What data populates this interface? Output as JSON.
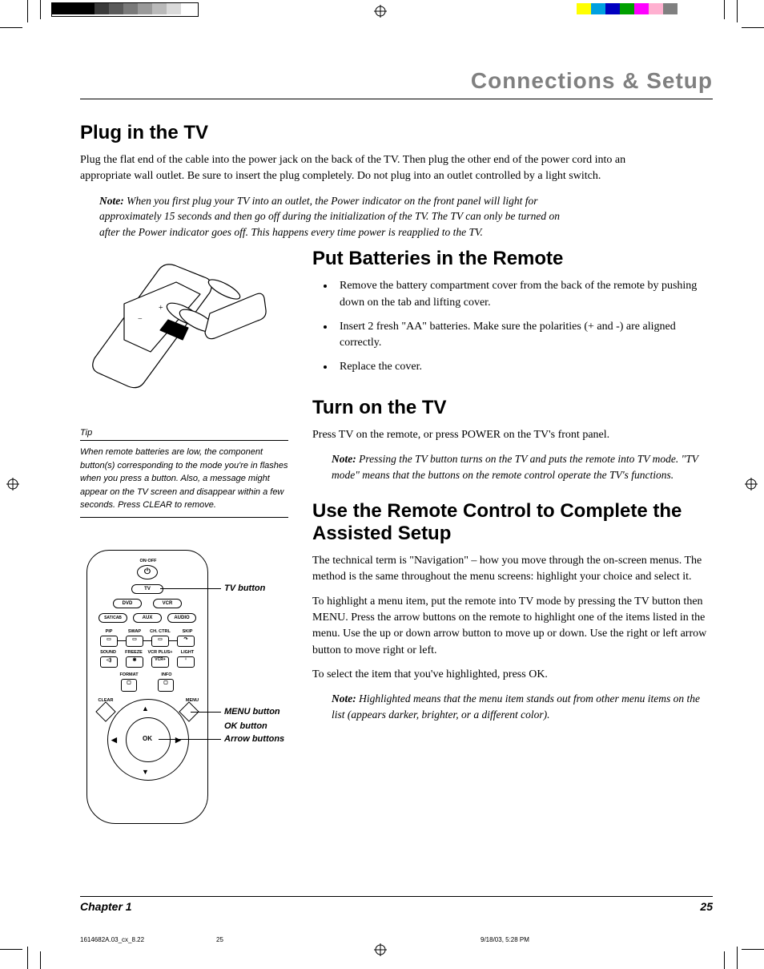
{
  "print_marks": {
    "left_strip_colors": [
      "#000000",
      "#000000",
      "#000000",
      "#3a3a3a",
      "#5a5a5a",
      "#7a7a7a",
      "#9a9a9a",
      "#bababa",
      "#dadada",
      "#ffffff"
    ],
    "right_strip_colors": [
      "#ffff00",
      "#00a0e0",
      "#0000c0",
      "#00a000",
      "#ff00ff",
      "#ffb0d0",
      "#808080",
      "#ffffff"
    ]
  },
  "header": {
    "title": "Connections & Setup"
  },
  "section_plug": {
    "heading": "Plug in the TV",
    "body": "Plug the flat end of the cable into the power jack on the back of the TV. Then plug the other end of the power cord into an appropriate wall outlet. Be sure to insert the plug completely. Do not plug into an outlet controlled by a light switch.",
    "note_label": "Note:",
    "note": "When you first plug your TV into an outlet, the Power indicator on the front panel will light for approximately 15 seconds and then go off during the initialization of the TV. The TV can only be turned on after the Power indicator goes off. This happens every time power is reapplied to the TV."
  },
  "tip": {
    "label": "Tip",
    "text": "When remote batteries are low, the component button(s) corresponding to the mode you're in flashes when you press a button. Also, a message might appear on the TV screen and disappear within a few seconds. Press CLEAR to remove."
  },
  "section_batteries": {
    "heading": "Put Batteries in the Remote",
    "bullets": [
      "Remove the battery compartment cover from the back of the remote by pushing down on the tab and lifting cover.",
      "Insert 2 fresh \"AA\" batteries. Make sure the polarities (+ and -) are aligned correctly.",
      "Replace the cover."
    ]
  },
  "section_turnon": {
    "heading": "Turn on the TV",
    "body": "Press TV on the remote, or press POWER on the TV's front panel.",
    "note_label": "Note:",
    "note": "Pressing the TV button turns on the TV and puts the remote into TV mode. \"TV mode\" means that the buttons on the remote control operate the TV's functions."
  },
  "section_assisted": {
    "heading": "Use the Remote Control to Complete the Assisted Setup",
    "p1": "The technical term is \"Navigation\" – how you move through the on-screen menus. The method is the same throughout the menu screens: highlight your choice and select it.",
    "p2": "To highlight a menu item, put the remote into TV mode by pressing the TV button then MENU. Press the arrow buttons on the remote to highlight one of the items listed in the menu. Use the up or down arrow button to move up or down. Use the right or left arrow button to move right or left.",
    "p3": "To select the item that you've highlighted, press OK.",
    "note_label": "Note:",
    "note": "Highlighted means that the menu item stands out from other menu items on the list (appears darker, brighter, or a different color)."
  },
  "remote": {
    "labels": {
      "onoff": "ON·OFF",
      "tv": "TV",
      "dvd": "DVD",
      "vcr": "VCR",
      "satcab": "SAT/CAB",
      "aux": "AUX",
      "audio": "AUDIO",
      "pip": "PIP",
      "swap": "SWAP",
      "chctrl": "CH. CTRL",
      "skip": "SKIP",
      "sound": "SOUND",
      "freeze": "FREEZE",
      "vcrplus": "VCR PLUS+",
      "light": "LIGHT",
      "format": "FORMAT",
      "info": "INFO",
      "clear": "CLEAR",
      "menu": "MENU",
      "ok": "OK",
      "sym_mute": "◁)",
      "sym_freeze": "✱",
      "sym_vcrp": "VCR+",
      "sym_light": "♀"
    },
    "callouts": {
      "tv": "TV button",
      "menu": "MENU button",
      "ok": "OK button",
      "arrows": "Arrow buttons"
    }
  },
  "footer": {
    "chapter": "Chapter 1",
    "page": "25"
  },
  "meta": {
    "file": "1614682A.03_cx_8.22",
    "pg": "25",
    "date": "9/18/03, 5:28 PM"
  }
}
